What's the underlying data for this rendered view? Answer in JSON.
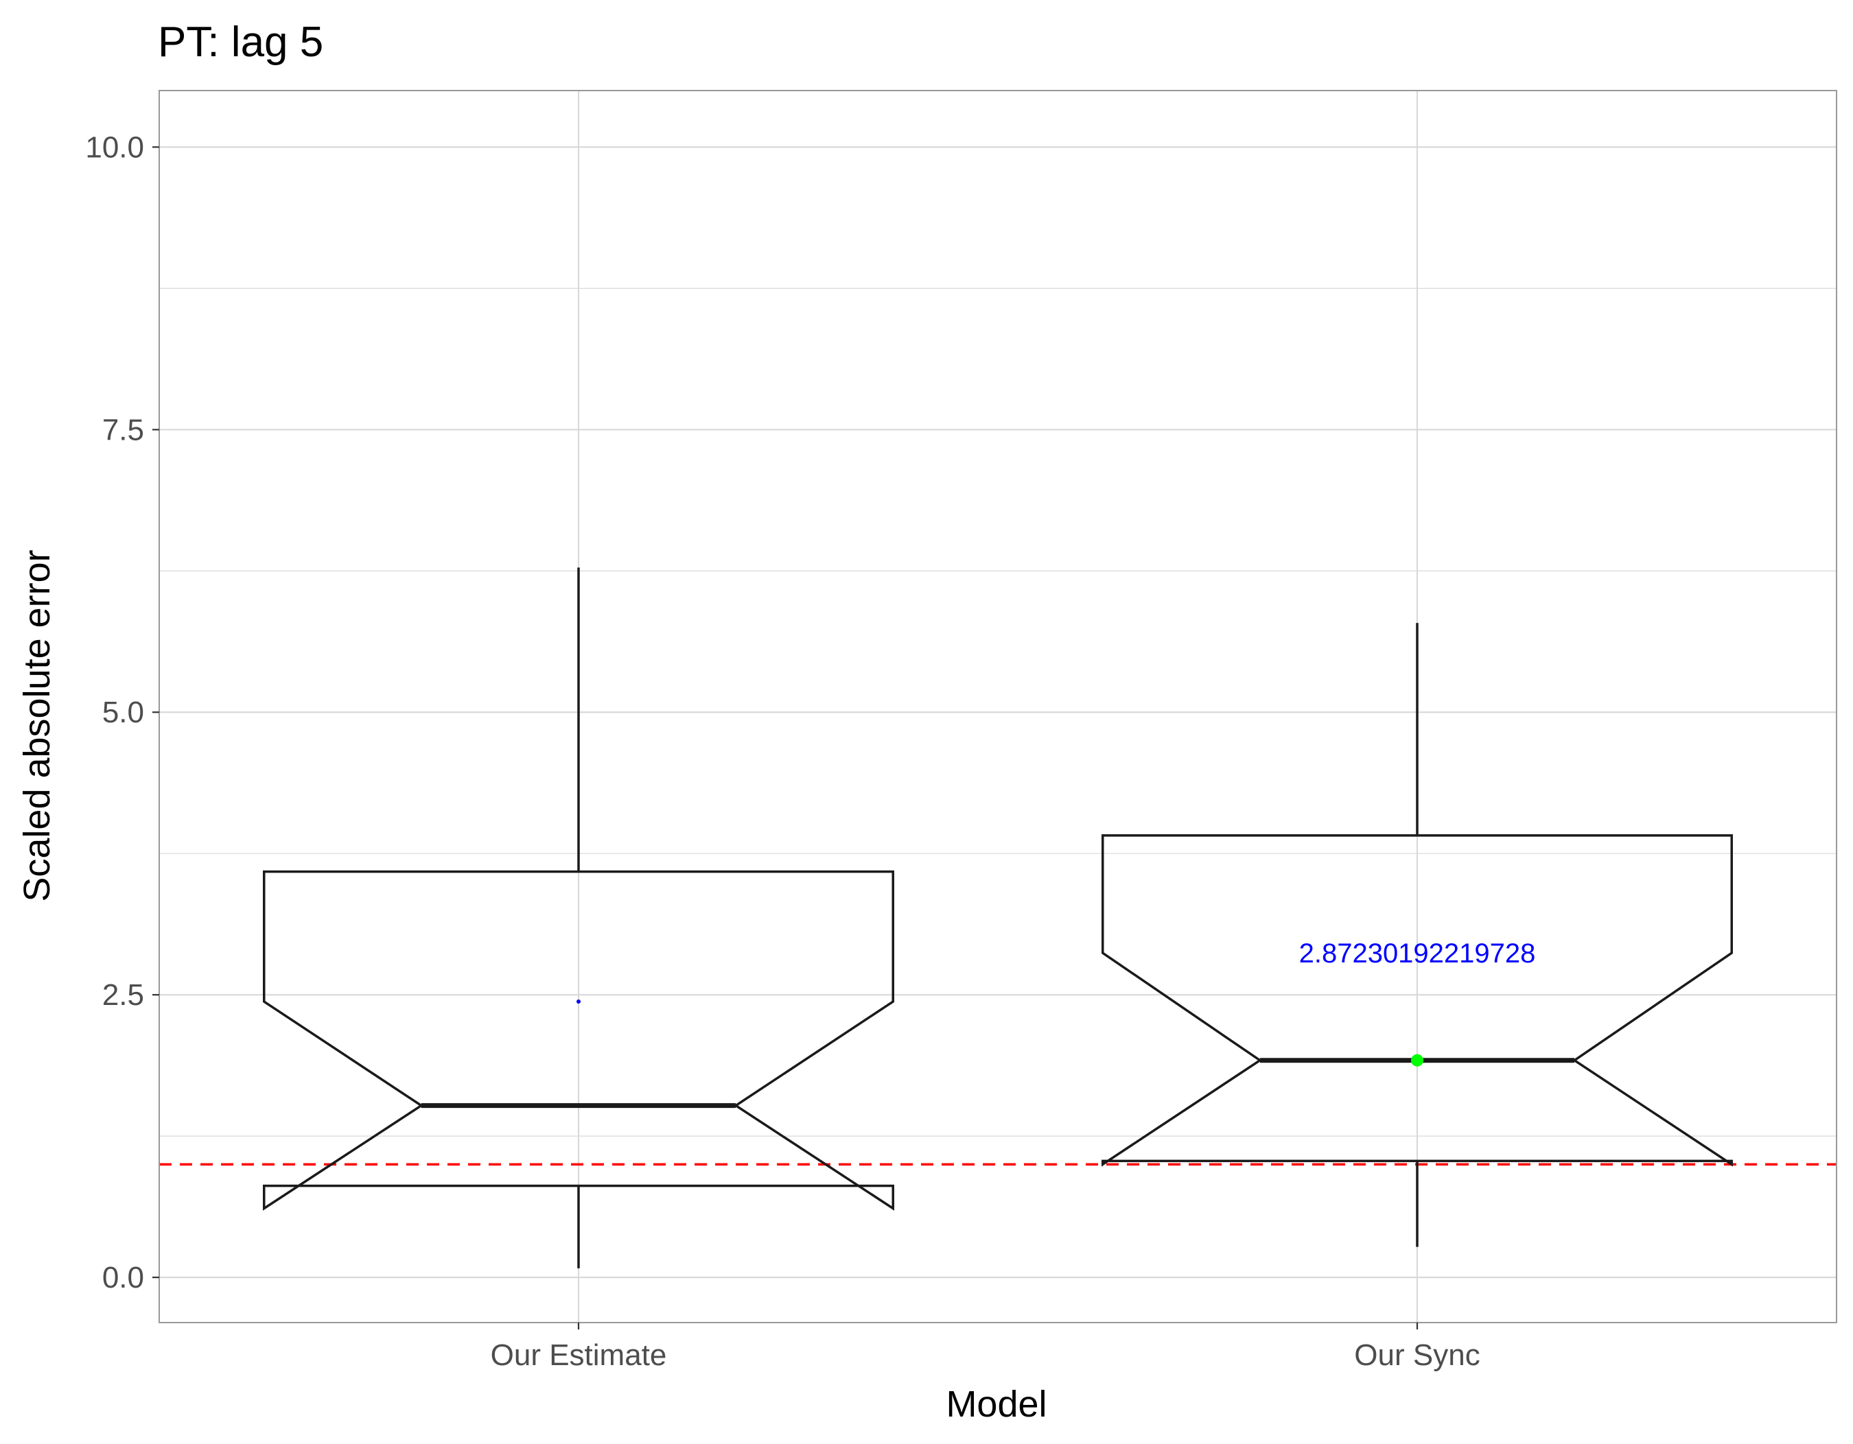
{
  "chart_data": {
    "type": "box",
    "title": "PT: lag 5",
    "xlabel": "Model",
    "ylabel": "Scaled absolute error",
    "categories": [
      "Our Estimate",
      "Our Sync"
    ],
    "ylim": [
      -0.4,
      10.5
    ],
    "yticks": [
      0.0,
      2.5,
      5.0,
      7.5,
      10.0
    ],
    "ytick_labels": [
      "0.0",
      "2.5",
      "5.0",
      "7.5",
      "10.0"
    ],
    "grid": true,
    "notched": true,
    "boxes": [
      {
        "name": "Our Estimate",
        "whisker_low": 0.08,
        "q1": 0.81,
        "median": 1.52,
        "q3": 3.59,
        "whisker_high": 6.28,
        "notch_low": 0.61,
        "notch_high": 2.44,
        "mean": 2.44,
        "mean_color": "#0000ff",
        "mean_marker": "small-point"
      },
      {
        "name": "Our Sync",
        "whisker_low": 0.27,
        "q1": 1.03,
        "median": 1.92,
        "q3": 3.91,
        "whisker_high": 5.79,
        "notch_low": 1.0,
        "notch_high": 2.87,
        "mean": 1.92,
        "mean_color": "#00ff00",
        "mean_marker": "dot",
        "annotation": "2.87230192219728",
        "annotation_y": 2.87,
        "annotation_color": "#0000ff"
      }
    ],
    "reference_line": {
      "y": 1.0,
      "color": "#ff0000",
      "style": "dashed"
    },
    "colors": {
      "box_stroke": "#1a1a1a",
      "grid": "#d9d9d9",
      "panel_border": "#999999"
    }
  }
}
